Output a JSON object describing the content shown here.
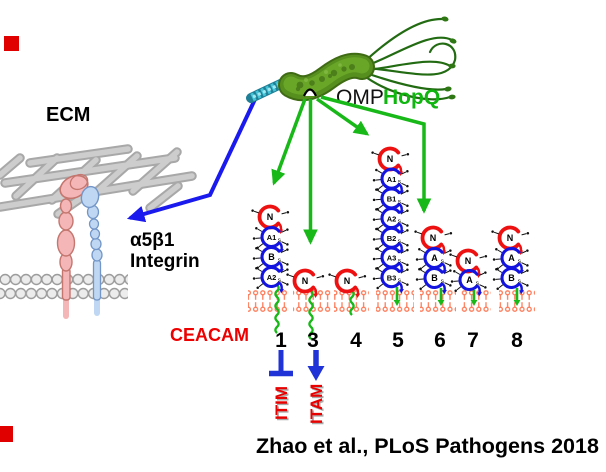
{
  "labels": {
    "ecm": "ECM",
    "integrin_line1": "α5β1",
    "integrin_line2": "Integrin",
    "omp": "OMP",
    "hopq": "HopQ",
    "ceacam": "CEACAM",
    "itim": "ITIM",
    "itam": "ITAM",
    "citation": "Zhao et al., PLoS Pathogens 2018"
  },
  "receptors": [
    {
      "number": "1",
      "domains": [
        "N",
        "A1",
        "B",
        "A2"
      ],
      "anchor": "transmembrane",
      "signaling_motif": "ITIM"
    },
    {
      "number": "3",
      "domains": [
        "N"
      ],
      "anchor": "transmembrane",
      "signaling_motif": "ITAM"
    },
    {
      "number": "4",
      "domains": [
        "N"
      ],
      "anchor": "transmembrane-short",
      "signaling_motif": ""
    },
    {
      "number": "5",
      "domains": [
        "N",
        "A1",
        "B1",
        "A2",
        "B2",
        "A3",
        "B3"
      ],
      "anchor": "gpi",
      "signaling_motif": ""
    },
    {
      "number": "6",
      "domains": [
        "N",
        "A",
        "B"
      ],
      "anchor": "gpi",
      "signaling_motif": ""
    },
    {
      "number": "7",
      "domains": [
        "N",
        "A"
      ],
      "anchor": "gpi",
      "signaling_motif": ""
    },
    {
      "number": "8",
      "domains": [
        "N",
        "A",
        "B"
      ],
      "anchor": "gpi",
      "signaling_motif": ""
    }
  ],
  "hopq_targets": [
    "1",
    "3",
    "5",
    "6"
  ],
  "domain_glyph": {
    "disulfide_label": "s"
  },
  "icons": {
    "bacterium": "h-pylori-bacterium",
    "omp_marker": "omp-surface-protein-marker",
    "inhibition": "itim-inhibition-tbar",
    "activation": "itam-activation-arrow"
  },
  "colors": {
    "accent_green": "#17B817",
    "accent_blue": "#1A1AEE",
    "domain_red": "#EE1111",
    "domain_blue": "#1414E0",
    "membrane_orange": "#FF7B59",
    "text_red": "#E80000",
    "marker_red": "#E00000",
    "bacterium_green": "#578F1E",
    "ecm_gray": "#BDBDBD",
    "integrin_pink": "#F4B6B6",
    "integrin_blue": "#BFD7F2"
  }
}
